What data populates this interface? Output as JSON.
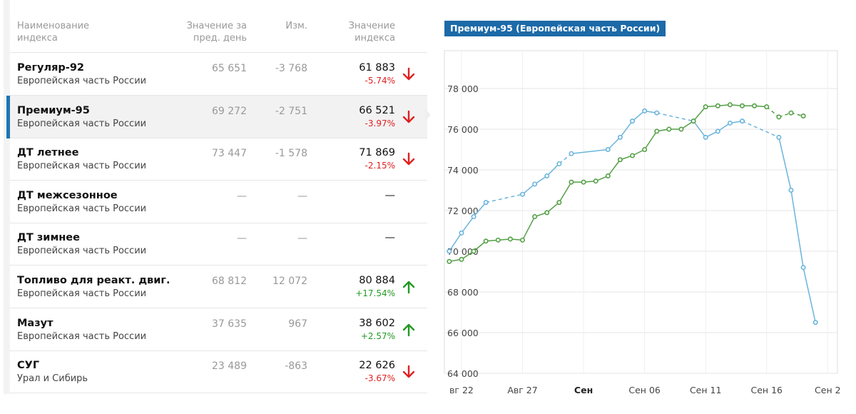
{
  "table": {
    "headers": {
      "name": [
        "Наименование",
        "индекса"
      ],
      "prev": [
        "Значение за",
        "пред. день"
      ],
      "change": [
        "Изм."
      ],
      "value": [
        "Значение",
        "индекса"
      ]
    },
    "rows": [
      {
        "name": "Регуляр-92",
        "region": "Европейская часть России",
        "prev": "65 651",
        "change": "-3 768",
        "value": "61 883",
        "pct": "-5.74%",
        "trend": "down",
        "selected": false
      },
      {
        "name": "Премиум-95",
        "region": "Европейская часть России",
        "prev": "69 272",
        "change": "-2 751",
        "value": "66 521",
        "pct": "-3.97%",
        "trend": "down",
        "selected": true
      },
      {
        "name": "ДТ летнее",
        "region": "Европейская часть России",
        "prev": "73 447",
        "change": "-1 578",
        "value": "71 869",
        "pct": "-2.15%",
        "trend": "down",
        "selected": false
      },
      {
        "name": "ДТ межсезонное",
        "region": "Европейская часть России",
        "prev": "—",
        "change": "—",
        "value": "—",
        "pct": "",
        "trend": "none",
        "selected": false
      },
      {
        "name": "ДТ зимнее",
        "region": "Европейская часть России",
        "prev": "—",
        "change": "—",
        "value": "—",
        "pct": "",
        "trend": "none",
        "selected": false
      },
      {
        "name": "Топливо для реакт. двиг.",
        "region": "Европейская часть России",
        "prev": "68 812",
        "change": "12 072",
        "value": "80 884",
        "pct": "+17.54%",
        "trend": "up",
        "selected": false
      },
      {
        "name": "Мазут",
        "region": "Европейская часть России",
        "prev": "37 635",
        "change": "967",
        "value": "38 602",
        "pct": "+2.57%",
        "trend": "up",
        "selected": false
      },
      {
        "name": "СУГ",
        "region": "Урал и Сибирь",
        "prev": "23 489",
        "change": "-863",
        "value": "22 626",
        "pct": "-3.67%",
        "trend": "down",
        "selected": false
      }
    ]
  },
  "colors": {
    "down": "#e02020",
    "up": "#229922",
    "accent": "#1c6aa8",
    "series_blue": "#6ab4dc",
    "series_green": "#54a046"
  },
  "icons": {
    "down": "arrow-down-icon",
    "up": "arrow-up-icon"
  },
  "chart_data": {
    "type": "line",
    "title": "Премиум-95 (Европейская часть России)",
    "x_unit": "day of month (Aug 21 → Sep 21)",
    "ylim": [
      64000,
      80000
    ],
    "y_ticks": [
      64000,
      66000,
      68000,
      70000,
      72000,
      74000,
      76000,
      78000
    ],
    "y_tick_labels": [
      "64 000",
      "66 000",
      "68 000",
      "70 000",
      "72 000",
      "74 000",
      "76 000",
      "78 000"
    ],
    "x_ticks": [
      {
        "label": "вг 22",
        "day": 22,
        "bold": false
      },
      {
        "label": "Авг 27",
        "day": 27,
        "bold": false
      },
      {
        "label": "Сен",
        "day": 32,
        "bold": true
      },
      {
        "label": "Сен 06",
        "day": 37,
        "bold": false
      },
      {
        "label": "Сен 11",
        "day": 42,
        "bold": false
      },
      {
        "label": "Сен 16",
        "day": 47,
        "bold": false
      },
      {
        "label": "Сен 2",
        "day": 52,
        "bold": false
      }
    ],
    "xlim": [
      20.6,
      52.8
    ],
    "grid": true,
    "series": [
      {
        "color": "#6ab4dc",
        "points": [
          [
            21,
            70000
          ],
          [
            22,
            70900
          ],
          [
            23,
            71700
          ],
          [
            24,
            72400
          ],
          [
            27,
            72800
          ],
          [
            28,
            73300
          ],
          [
            29,
            73700
          ],
          [
            30,
            74300
          ],
          [
            31,
            74800
          ],
          [
            34,
            75000
          ],
          [
            35,
            75600
          ],
          [
            36,
            76400
          ],
          [
            37,
            76900
          ],
          [
            38,
            76800
          ],
          [
            41,
            76400
          ],
          [
            42,
            75600
          ],
          [
            43,
            75900
          ],
          [
            44,
            76300
          ],
          [
            45,
            76400
          ],
          [
            48,
            75600
          ],
          [
            49,
            73000
          ],
          [
            50,
            69200
          ],
          [
            51,
            66500
          ]
        ],
        "dashed_after": [
          3,
          7,
          13,
          18
        ]
      },
      {
        "color": "#54a046",
        "points": [
          [
            21,
            69500
          ],
          [
            22,
            69600
          ],
          [
            23,
            70000
          ],
          [
            24,
            70500
          ],
          [
            25,
            70550
          ],
          [
            26,
            70600
          ],
          [
            27,
            70550
          ],
          [
            28,
            71700
          ],
          [
            29,
            71900
          ],
          [
            30,
            72400
          ],
          [
            31,
            73400
          ],
          [
            32,
            73400
          ],
          [
            33,
            73450
          ],
          [
            34,
            73700
          ],
          [
            35,
            74500
          ],
          [
            36,
            74700
          ],
          [
            37,
            75000
          ],
          [
            38,
            75900
          ],
          [
            39,
            76000
          ],
          [
            40,
            76000
          ],
          [
            41,
            76400
          ],
          [
            42,
            77100
          ],
          [
            43,
            77150
          ],
          [
            44,
            77200
          ],
          [
            45,
            77150
          ],
          [
            46,
            77150
          ],
          [
            47,
            77100
          ],
          [
            48,
            76600
          ],
          [
            49,
            76800
          ],
          [
            50,
            76650
          ]
        ],
        "dashed_after": [
          26,
          27,
          28
        ]
      }
    ]
  }
}
